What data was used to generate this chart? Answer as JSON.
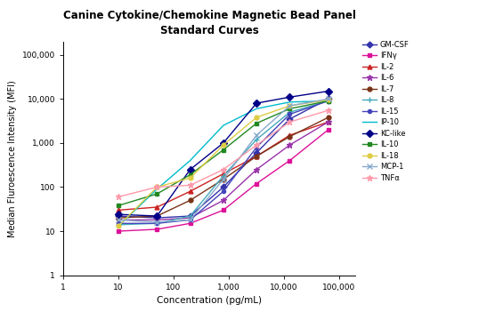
{
  "title": "Canine Cytokine/Chemokine Magnetic Bead Panel\nStandard Curves",
  "xlabel": "Concentration (pg/mL)",
  "ylabel": "Median Fluroescence Intensity (MFI)",
  "xlim": [
    1,
    200000
  ],
  "ylim": [
    1,
    200000
  ],
  "x_ticks": [
    1,
    10,
    100,
    1000,
    10000,
    100000
  ],
  "x_tick_labels": [
    "1",
    "10",
    "100",
    "1,000",
    "10,000",
    "100,000"
  ],
  "y_ticks": [
    1,
    10,
    100,
    1000,
    10000,
    100000
  ],
  "y_tick_labels": [
    "1",
    "10",
    "100",
    "1,000",
    "10,000",
    "100,000"
  ],
  "series": [
    {
      "label": "GM-CSF",
      "color": "#3333aa",
      "marker": "D",
      "markersize": 3.5,
      "x": [
        10,
        50,
        200,
        800,
        3200,
        12800,
        64000
      ],
      "y": [
        22,
        20,
        22,
        100,
        600,
        3500,
        10000
      ]
    },
    {
      "label": "IFNγ",
      "color": "#dd1199",
      "marker": "s",
      "markersize": 3.5,
      "x": [
        10,
        50,
        200,
        800,
        3200,
        12800,
        64000
      ],
      "y": [
        10,
        11,
        15,
        30,
        120,
        400,
        2000
      ]
    },
    {
      "label": "IL-2",
      "color": "#cc2222",
      "marker": "^",
      "markersize": 3.5,
      "x": [
        10,
        50,
        200,
        800,
        3200,
        12800,
        64000
      ],
      "y": [
        30,
        35,
        80,
        200,
        500,
        1500,
        3000
      ]
    },
    {
      "label": "IL-6",
      "color": "#9933aa",
      "marker": "*",
      "markersize": 5,
      "x": [
        10,
        50,
        200,
        800,
        3200,
        12800,
        64000
      ],
      "y": [
        18,
        18,
        20,
        50,
        250,
        900,
        3000
      ]
    },
    {
      "label": "IL-7",
      "color": "#7a3318",
      "marker": "o",
      "markersize": 3.5,
      "x": [
        10,
        50,
        200,
        800,
        3200,
        12800,
        64000
      ],
      "y": [
        20,
        22,
        50,
        150,
        500,
        1400,
        3800
      ]
    },
    {
      "label": "IL-8",
      "color": "#44aabb",
      "marker": "+",
      "markersize": 5,
      "x": [
        10,
        50,
        200,
        800,
        3200,
        12800,
        64000
      ],
      "y": [
        14,
        15,
        22,
        180,
        1200,
        5000,
        9000
      ]
    },
    {
      "label": "IL-15",
      "color": "#4444bb",
      "marker": "o",
      "markersize": 3,
      "x": [
        10,
        50,
        200,
        800,
        3200,
        12800,
        64000
      ],
      "y": [
        15,
        15,
        18,
        80,
        800,
        4500,
        9000
      ]
    },
    {
      "label": "IP-10",
      "color": "#00bbcc",
      "marker": "None",
      "markersize": 3,
      "x": [
        10,
        50,
        200,
        800,
        3200,
        12800,
        64000
      ],
      "y": [
        13,
        90,
        400,
        2500,
        6000,
        8500,
        9000
      ]
    },
    {
      "label": "KC-like",
      "color": "#000088",
      "marker": "D",
      "markersize": 4,
      "x": [
        10,
        50,
        200,
        800,
        3200,
        12800,
        64000
      ],
      "y": [
        24,
        22,
        250,
        1000,
        8000,
        11000,
        15000
      ]
    },
    {
      "label": "IL-10",
      "color": "#228822",
      "marker": "s",
      "markersize": 3.5,
      "x": [
        10,
        50,
        200,
        800,
        3200,
        12800,
        64000
      ],
      "y": [
        38,
        70,
        190,
        700,
        2800,
        6000,
        9000
      ]
    },
    {
      "label": "IL-18",
      "color": "#ddcc44",
      "marker": "o",
      "markersize": 3.5,
      "x": [
        10,
        50,
        200,
        800,
        3200,
        12800,
        64000
      ],
      "y": [
        13,
        100,
        160,
        900,
        3800,
        7000,
        9500
      ]
    },
    {
      "label": "MCP-1",
      "color": "#88aacc",
      "marker": "x",
      "markersize": 4,
      "x": [
        10,
        50,
        200,
        800,
        3200,
        12800,
        64000
      ],
      "y": [
        18,
        16,
        18,
        150,
        1500,
        7000,
        10000
      ]
    },
    {
      "label": "TNFα",
      "color": "#ff99aa",
      "marker": "*",
      "markersize": 5,
      "x": [
        10,
        50,
        200,
        800,
        3200,
        12800,
        64000
      ],
      "y": [
        60,
        100,
        110,
        250,
        900,
        3000,
        5500
      ]
    }
  ]
}
